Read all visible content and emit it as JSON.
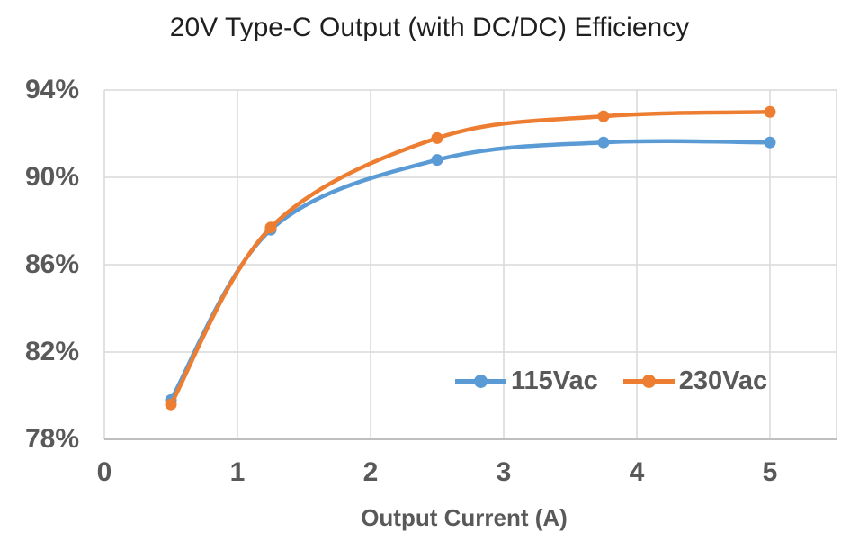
{
  "chart_data": {
    "type": "line",
    "title": "20V Type-C Output (with DC/DC) Efficiency",
    "xlabel": "Output Current (A)",
    "ylabel": "",
    "x": [
      0.5,
      1.25,
      2.5,
      3.75,
      5
    ],
    "series": [
      {
        "name": "115Vac",
        "color": "#5B9BD5",
        "values": [
          79.8,
          87.6,
          90.8,
          91.6,
          91.6
        ]
      },
      {
        "name": "230Vac",
        "color": "#ED7D31",
        "values": [
          79.6,
          87.7,
          91.8,
          92.8,
          93.0
        ]
      }
    ],
    "xlim": [
      0,
      5.5
    ],
    "ylim": [
      78,
      94
    ],
    "x_ticks": [
      0,
      1,
      2,
      3,
      4,
      5
    ],
    "y_ticks": [
      78,
      82,
      86,
      90,
      94
    ],
    "y_tick_suffix": "%",
    "grid": true,
    "line_smoothing": true,
    "legend_position": "inside-bottom-right"
  },
  "colors": {
    "title_text": "#1f1f1f",
    "axis_text": "#595959",
    "gridline": "#d9d9d9",
    "axis_line": "#bfbfbf",
    "background": "#ffffff"
  }
}
